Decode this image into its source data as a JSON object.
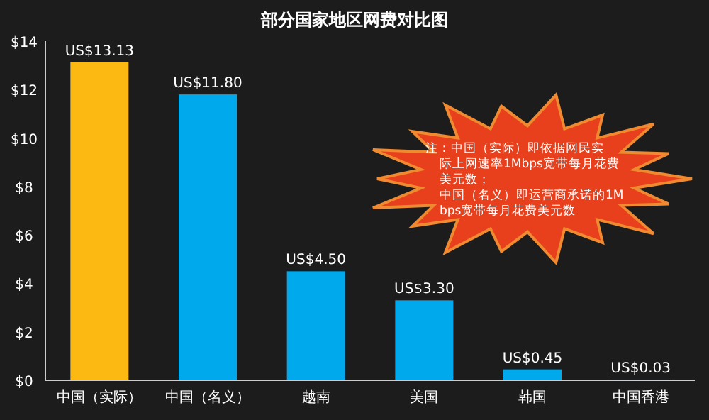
{
  "chart_data": {
    "type": "bar",
    "title": "部分国家地区网费对比图",
    "categories": [
      "中国（实际）",
      "中国（名义）",
      "越南",
      "美国",
      "韩国",
      "中国香港"
    ],
    "values": [
      13.13,
      11.8,
      4.5,
      3.3,
      0.45,
      0.03
    ],
    "colors": [
      "#fbb912",
      "#00a9ec",
      "#00a9ec",
      "#00a9ec",
      "#00a9ec",
      "#00a9ec"
    ],
    "value_labels": [
      "US$13.13",
      "US$11.80",
      "US$4.50",
      "US$3.30",
      "US$0.45",
      "US$0.03"
    ],
    "ylim": [
      0,
      14
    ],
    "yticks": [
      {
        "value": 0,
        "label": "$0"
      },
      {
        "value": 2,
        "label": "$2"
      },
      {
        "value": 4,
        "label": "$4"
      },
      {
        "value": 6,
        "label": "$6"
      },
      {
        "value": 8,
        "label": "$8"
      },
      {
        "value": 10,
        "label": "$10"
      },
      {
        "value": 12,
        "label": "$12"
      },
      {
        "value": 14,
        "label": "$14"
      }
    ],
    "grid": false,
    "annotations": [
      "注：中国（实际）即依据网民实际上网速率1Mbps宽带每月花费美元数；",
      "中国（名义）即运营商承诺的1Mbps宽带每月花费美元数"
    ]
  }
}
